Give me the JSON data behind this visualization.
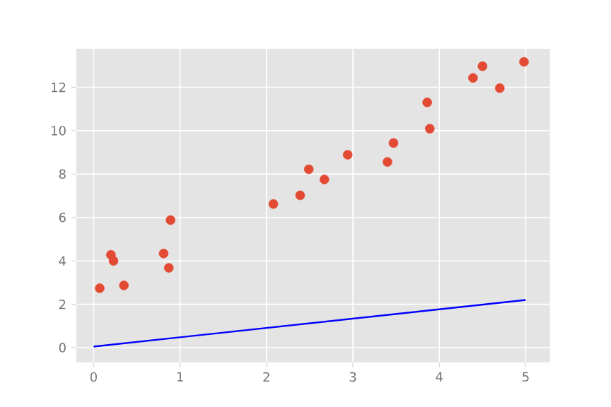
{
  "chart_data": {
    "type": "scatter",
    "xlim": [
      -0.2,
      5.28
    ],
    "ylim": [
      -0.67,
      13.77
    ],
    "xticks": [
      0,
      1,
      2,
      3,
      4,
      5
    ],
    "yticks": [
      0,
      2,
      4,
      6,
      8,
      10,
      12
    ],
    "grid": true,
    "series": [
      {
        "marker": "circle",
        "color": "#e24a33",
        "x": [
          0.07,
          0.2,
          0.23,
          0.35,
          0.81,
          0.87,
          0.89,
          2.08,
          2.39,
          2.49,
          2.67,
          2.94,
          3.4,
          3.47,
          3.86,
          3.89,
          4.39,
          4.5,
          4.7,
          4.98
        ],
        "values": [
          2.74,
          4.28,
          4.0,
          2.87,
          4.34,
          3.68,
          5.88,
          6.62,
          7.02,
          8.22,
          7.75,
          8.89,
          8.56,
          9.43,
          11.3,
          10.09,
          12.43,
          12.97,
          11.96,
          13.17
        ]
      },
      {
        "type": "line",
        "color": "#0000ff",
        "line_style": "solid",
        "x": [
          0,
          5
        ],
        "values": [
          0.05,
          2.2
        ]
      }
    ]
  }
}
